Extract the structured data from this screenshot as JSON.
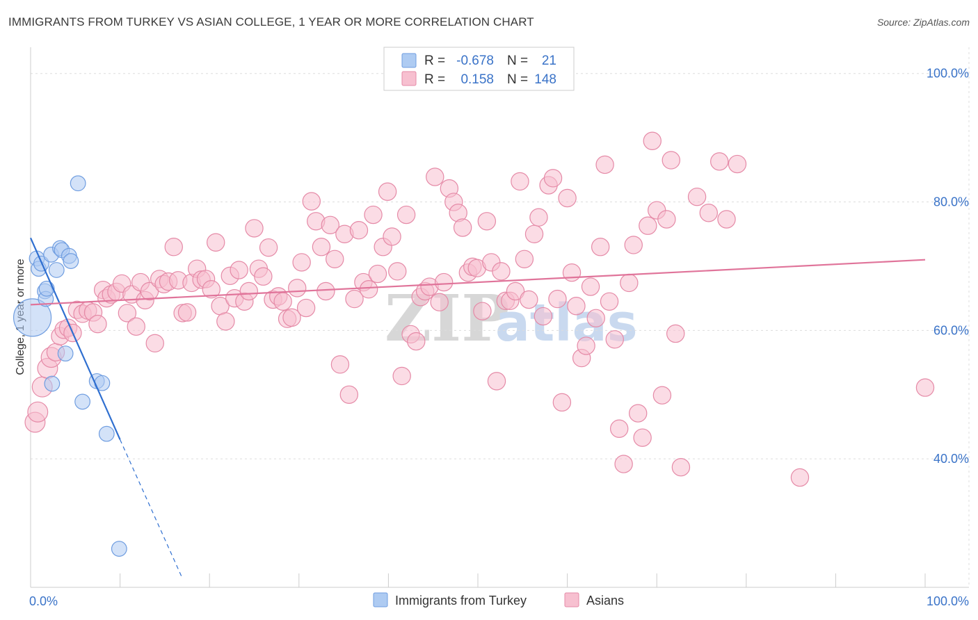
{
  "title": "IMMIGRANTS FROM TURKEY VS ASIAN COLLEGE, 1 YEAR OR MORE CORRELATION CHART",
  "source": "Source: ZipAtlas.com",
  "watermark": {
    "part1": "ZIP",
    "part2": "atlas"
  },
  "legend": {
    "r_label": "R =",
    "n_label": "N =",
    "rows": [
      {
        "r": "-0.678",
        "n": "21",
        "color": "#aecbf2",
        "stroke": "#6f9de0"
      },
      {
        "r": "0.158",
        "n": "148",
        "color": "#f7c0d0",
        "stroke": "#e58aa7"
      }
    ]
  },
  "chart_data": {
    "type": "scatter",
    "title": "IMMIGRANTS FROM TURKEY VS ASIAN COLLEGE, 1 YEAR OR MORE CORRELATION CHART",
    "xlabel": "",
    "ylabel": "College, 1 year or more",
    "x_ticks": [
      "0.0%",
      "100.0%"
    ],
    "y_ticks": [
      "100.0%",
      "80.0%",
      "60.0%",
      "40.0%"
    ],
    "xlim": [
      0,
      100
    ],
    "ylim": [
      20,
      103
    ],
    "series": [
      {
        "name": "Immigrants from Turkey",
        "color": "#aecbf2",
        "stroke": "#6f9de0",
        "trend": {
          "x0": 0,
          "y0": 74.4,
          "x1": 10.0,
          "y1": 43.0,
          "dash_to_x": 17.0,
          "dash_to_y": 21.3
        },
        "points": [
          [
            0.2,
            62.0,
            3.0
          ],
          [
            0.7,
            71.2,
            1.2
          ],
          [
            0.9,
            69.6,
            1.2
          ],
          [
            1.2,
            70.4,
            1.2
          ],
          [
            1.6,
            66.1,
            1.2
          ],
          [
            1.7,
            64.9,
            1.2
          ],
          [
            1.8,
            66.5,
            1.2
          ],
          [
            2.3,
            71.8,
            1.2
          ],
          [
            2.4,
            51.7,
            1.2
          ],
          [
            2.9,
            69.4,
            1.2
          ],
          [
            3.3,
            72.8,
            1.2
          ],
          [
            3.5,
            72.5,
            1.2
          ],
          [
            3.9,
            56.4,
            1.2
          ],
          [
            4.3,
            71.6,
            1.2
          ],
          [
            4.5,
            70.8,
            1.2
          ],
          [
            5.3,
            82.9,
            1.2
          ],
          [
            5.8,
            48.9,
            1.2
          ],
          [
            7.4,
            52.1,
            1.2
          ],
          [
            8.0,
            51.8,
            1.2
          ],
          [
            8.5,
            43.9,
            1.2
          ],
          [
            9.9,
            26.0,
            1.2
          ]
        ]
      },
      {
        "name": "Asians",
        "color": "#f7c0d0",
        "stroke": "#e58aa7",
        "trend": {
          "x0": 0,
          "y0": 64.0,
          "x1": 100,
          "y1": 71.0
        },
        "points": [
          [
            0.5,
            45.7,
            1.6
          ],
          [
            0.8,
            47.3,
            1.6
          ],
          [
            1.3,
            51.2,
            1.6
          ],
          [
            1.9,
            54.1,
            1.6
          ],
          [
            2.3,
            55.8,
            1.6
          ],
          [
            2.8,
            56.6,
            1.4
          ],
          [
            3.3,
            59.1,
            1.4
          ],
          [
            3.7,
            60.1,
            1.4
          ],
          [
            4.2,
            60.4,
            1.4
          ],
          [
            4.7,
            59.6,
            1.4
          ],
          [
            5.2,
            63.2,
            1.4
          ],
          [
            5.8,
            62.6,
            1.4
          ],
          [
            6.4,
            63.1,
            1.4
          ],
          [
            7.0,
            62.8,
            1.4
          ],
          [
            7.5,
            61.0,
            1.4
          ],
          [
            8.1,
            66.3,
            1.4
          ],
          [
            8.5,
            65.0,
            1.4
          ],
          [
            9.0,
            65.6,
            1.4
          ],
          [
            9.6,
            66.0,
            1.4
          ],
          [
            10.2,
            67.3,
            1.4
          ],
          [
            10.8,
            62.7,
            1.4
          ],
          [
            11.3,
            65.6,
            1.4
          ],
          [
            11.8,
            60.6,
            1.4
          ],
          [
            12.3,
            67.5,
            1.4
          ],
          [
            12.8,
            64.7,
            1.4
          ],
          [
            13.3,
            66.1,
            1.4
          ],
          [
            13.9,
            58.0,
            1.4
          ],
          [
            14.4,
            68.0,
            1.4
          ],
          [
            14.9,
            67.2,
            1.4
          ],
          [
            15.4,
            67.6,
            1.4
          ],
          [
            16.0,
            73.0,
            1.4
          ],
          [
            16.5,
            67.8,
            1.4
          ],
          [
            17.0,
            62.7,
            1.4
          ],
          [
            17.5,
            62.8,
            1.4
          ],
          [
            18.0,
            67.4,
            1.4
          ],
          [
            18.6,
            69.6,
            1.4
          ],
          [
            19.1,
            67.9,
            1.4
          ],
          [
            19.6,
            68.0,
            1.4
          ],
          [
            20.2,
            66.4,
            1.4
          ],
          [
            20.7,
            73.7,
            1.4
          ],
          [
            21.2,
            63.8,
            1.4
          ],
          [
            21.8,
            61.4,
            1.4
          ],
          [
            22.3,
            68.5,
            1.4
          ],
          [
            22.8,
            65.0,
            1.4
          ],
          [
            23.3,
            69.4,
            1.4
          ],
          [
            23.9,
            64.5,
            1.4
          ],
          [
            24.4,
            66.1,
            1.4
          ],
          [
            25.0,
            75.9,
            1.4
          ],
          [
            25.5,
            69.6,
            1.4
          ],
          [
            26.0,
            68.4,
            1.4
          ],
          [
            26.6,
            72.9,
            1.4
          ],
          [
            27.1,
            64.8,
            1.4
          ],
          [
            27.7,
            65.3,
            1.4
          ],
          [
            28.2,
            64.5,
            1.4
          ],
          [
            28.7,
            61.8,
            1.4
          ],
          [
            29.2,
            62.0,
            1.4
          ],
          [
            29.8,
            66.6,
            1.4
          ],
          [
            30.3,
            70.6,
            1.4
          ],
          [
            30.8,
            63.5,
            1.4
          ],
          [
            31.4,
            80.1,
            1.4
          ],
          [
            31.9,
            77.0,
            1.4
          ],
          [
            32.5,
            73.0,
            1.4
          ],
          [
            33.0,
            66.1,
            1.4
          ],
          [
            33.5,
            76.4,
            1.4
          ],
          [
            34.0,
            71.1,
            1.4
          ],
          [
            34.6,
            54.7,
            1.4
          ],
          [
            35.1,
            75.0,
            1.4
          ],
          [
            35.6,
            50.0,
            1.4
          ],
          [
            36.2,
            64.9,
            1.4
          ],
          [
            36.7,
            75.6,
            1.4
          ],
          [
            37.2,
            67.5,
            1.4
          ],
          [
            37.8,
            66.4,
            1.4
          ],
          [
            38.3,
            78.0,
            1.4
          ],
          [
            38.8,
            68.8,
            1.4
          ],
          [
            39.4,
            73.0,
            1.4
          ],
          [
            39.9,
            81.6,
            1.4
          ],
          [
            40.4,
            74.6,
            1.4
          ],
          [
            41.0,
            69.2,
            1.4
          ],
          [
            41.5,
            52.9,
            1.4
          ],
          [
            42.0,
            78.0,
            1.4
          ],
          [
            42.5,
            59.4,
            1.4
          ],
          [
            43.1,
            58.3,
            1.4
          ],
          [
            43.6,
            65.2,
            1.4
          ],
          [
            44.1,
            66.1,
            1.4
          ],
          [
            44.6,
            66.8,
            1.4
          ],
          [
            45.2,
            83.9,
            1.4
          ],
          [
            45.7,
            64.4,
            1.4
          ],
          [
            46.2,
            67.5,
            1.4
          ],
          [
            46.8,
            82.1,
            1.4
          ],
          [
            47.3,
            80.0,
            1.4
          ],
          [
            47.8,
            78.3,
            1.4
          ],
          [
            48.3,
            76.0,
            1.4
          ],
          [
            48.9,
            69.0,
            1.4
          ],
          [
            49.4,
            69.9,
            1.4
          ],
          [
            49.9,
            69.7,
            1.4
          ],
          [
            50.5,
            63.0,
            1.4
          ],
          [
            51.0,
            77.0,
            1.4
          ],
          [
            51.5,
            70.6,
            1.4
          ],
          [
            52.1,
            52.1,
            1.4
          ],
          [
            52.6,
            69.2,
            1.4
          ],
          [
            53.1,
            64.6,
            1.4
          ],
          [
            53.6,
            64.6,
            1.4
          ],
          [
            54.2,
            66.1,
            1.4
          ],
          [
            54.7,
            83.2,
            1.4
          ],
          [
            55.2,
            71.1,
            1.4
          ],
          [
            55.7,
            64.8,
            1.4
          ],
          [
            56.3,
            75.0,
            1.4
          ],
          [
            56.8,
            77.6,
            1.4
          ],
          [
            57.3,
            62.2,
            1.4
          ],
          [
            57.9,
            82.6,
            1.4
          ],
          [
            58.4,
            83.7,
            1.4
          ],
          [
            58.9,
            64.9,
            1.4
          ],
          [
            59.4,
            48.8,
            1.4
          ],
          [
            60.0,
            80.6,
            1.4
          ],
          [
            60.5,
            69.0,
            1.4
          ],
          [
            61.0,
            63.8,
            1.4
          ],
          [
            61.6,
            55.7,
            1.4
          ],
          [
            62.1,
            57.6,
            1.4
          ],
          [
            62.6,
            66.8,
            1.4
          ],
          [
            63.2,
            61.9,
            1.4
          ],
          [
            63.7,
            73.0,
            1.4
          ],
          [
            64.2,
            85.8,
            1.4
          ],
          [
            64.7,
            64.5,
            1.4
          ],
          [
            65.3,
            58.6,
            1.4
          ],
          [
            65.8,
            44.7,
            1.4
          ],
          [
            66.3,
            39.2,
            1.4
          ],
          [
            66.9,
            67.4,
            1.4
          ],
          [
            67.4,
            73.3,
            1.4
          ],
          [
            67.9,
            47.1,
            1.4
          ],
          [
            68.4,
            43.3,
            1.4
          ],
          [
            69.0,
            76.3,
            1.4
          ],
          [
            69.5,
            89.5,
            1.4
          ],
          [
            70.0,
            78.7,
            1.4
          ],
          [
            70.6,
            49.9,
            1.4
          ],
          [
            71.1,
            77.3,
            1.4
          ],
          [
            71.6,
            86.5,
            1.4
          ],
          [
            72.1,
            59.5,
            1.4
          ],
          [
            72.7,
            38.7,
            1.4
          ],
          [
            74.5,
            80.8,
            1.4
          ],
          [
            75.8,
            78.3,
            1.4
          ],
          [
            77.0,
            86.3,
            1.4
          ],
          [
            77.8,
            77.3,
            1.4
          ],
          [
            79.0,
            85.9,
            1.4
          ],
          [
            86.0,
            37.1,
            1.4
          ],
          [
            100.0,
            51.1,
            1.4
          ]
        ]
      }
    ]
  },
  "bottom_legend": [
    {
      "label": "Immigrants from Turkey",
      "color": "#aecbf2",
      "stroke": "#6f9de0"
    },
    {
      "label": "Asians",
      "color": "#f7c0d0",
      "stroke": "#e58aa7"
    }
  ]
}
